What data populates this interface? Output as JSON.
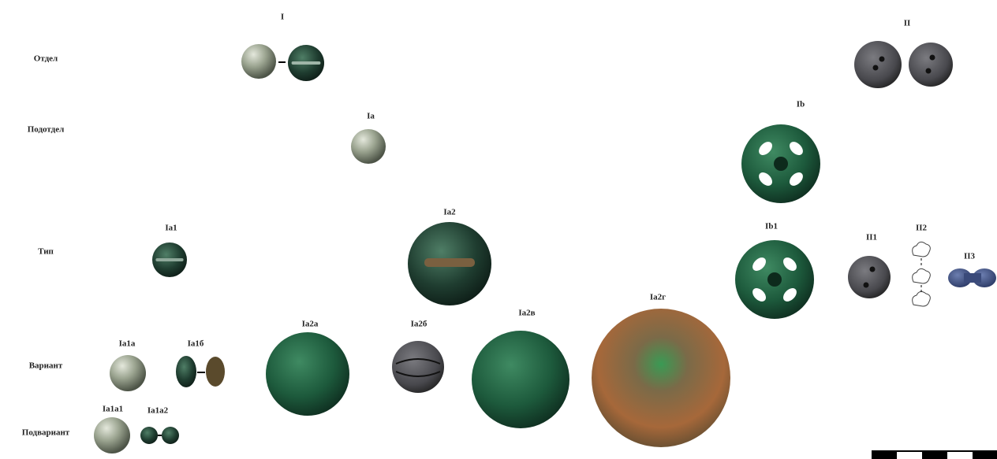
{
  "rows": [
    "Отдел",
    "Подотдел",
    "Тип",
    "Вариант",
    "Подвариант"
  ],
  "nodes": [
    {
      "label": "I"
    },
    {
      "label": "II"
    },
    {
      "label": "Ia"
    },
    {
      "label": "Ib"
    },
    {
      "label": "Ia1"
    },
    {
      "label": "Ia2"
    },
    {
      "label": "Ib1"
    },
    {
      "label": "II1"
    },
    {
      "label": "II2"
    },
    {
      "label": "II3"
    },
    {
      "label": "Ia1a"
    },
    {
      "label": "Ia1б"
    },
    {
      "label": "Ia2a"
    },
    {
      "label": "Ia2б"
    },
    {
      "label": "Ia2в"
    },
    {
      "label": "Ia2г"
    },
    {
      "label": "Ia1a1"
    },
    {
      "label": "Ia1a2"
    }
  ]
}
